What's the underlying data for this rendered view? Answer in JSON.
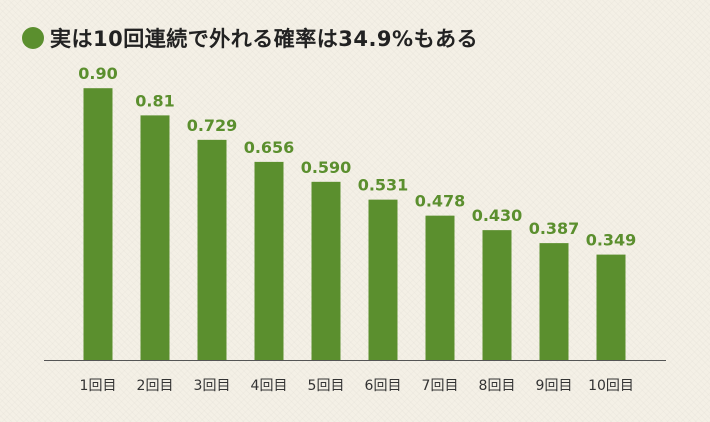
{
  "title": "実は10回連続で外れる確率は34.9%もある",
  "colors": {
    "bar": "#5b8f2e",
    "label": "#5b8f2e",
    "dot": "#5b8f2e",
    "axis": "#555555"
  },
  "chart_data": {
    "type": "bar",
    "title": "実は10回連続で外れる確率は34.9%もある",
    "categories": [
      "1回目",
      "2回目",
      "3回目",
      "4回目",
      "5回目",
      "6回目",
      "7回目",
      "8回目",
      "9回目",
      "10回目"
    ],
    "values": [
      0.9,
      0.81,
      0.729,
      0.656,
      0.59,
      0.531,
      0.478,
      0.43,
      0.387,
      0.349
    ],
    "value_labels": [
      "0.90",
      "0.81",
      "0.729",
      "0.656",
      "0.590",
      "0.531",
      "0.478",
      "0.430",
      "0.387",
      "0.349"
    ],
    "xlabel": "",
    "ylabel": "",
    "ylim": [
      0,
      1
    ],
    "grid": false,
    "legend": "none"
  }
}
